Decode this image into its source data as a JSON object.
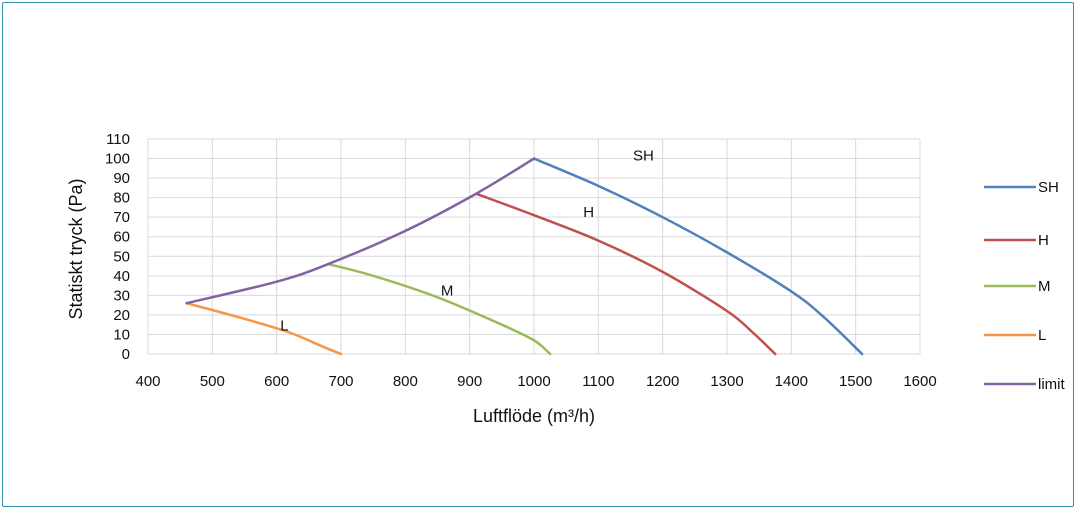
{
  "chart_data": {
    "type": "line",
    "title": "",
    "xlabel": "Luftflöde (m³/h)",
    "ylabel": "Statiskt tryck (Pa)",
    "xlim": [
      400,
      1600
    ],
    "ylim": [
      0,
      110
    ],
    "x_ticks": [
      400,
      500,
      600,
      700,
      800,
      900,
      1000,
      1100,
      1200,
      1300,
      1400,
      1500,
      1600
    ],
    "y_ticks": [
      0,
      10,
      20,
      30,
      40,
      50,
      60,
      70,
      80,
      90,
      100,
      110
    ],
    "grid": true,
    "legend_position": "right",
    "series": [
      {
        "name": "SH",
        "color": "#4f81bd",
        "points": [
          [
            1000,
            100
          ],
          [
            1100,
            86
          ],
          [
            1200,
            70
          ],
          [
            1300,
            52
          ],
          [
            1400,
            32
          ],
          [
            1450,
            19
          ],
          [
            1510,
            0
          ]
        ]
      },
      {
        "name": "H",
        "color": "#c0504d",
        "points": [
          [
            910,
            82
          ],
          [
            1000,
            71
          ],
          [
            1100,
            58
          ],
          [
            1200,
            42
          ],
          [
            1300,
            22
          ],
          [
            1340,
            11
          ],
          [
            1375,
            0
          ]
        ]
      },
      {
        "name": "M",
        "color": "#9bbb59",
        "points": [
          [
            680,
            46
          ],
          [
            750,
            40
          ],
          [
            850,
            29
          ],
          [
            950,
            15
          ],
          [
            1000,
            7
          ],
          [
            1025,
            0
          ]
        ]
      },
      {
        "name": "L",
        "color": "#f79646",
        "points": [
          [
            460,
            26
          ],
          [
            550,
            18
          ],
          [
            620,
            11
          ],
          [
            670,
            4
          ],
          [
            700,
            0
          ]
        ]
      },
      {
        "name": "limit",
        "color": "#8064a2",
        "points": [
          [
            460,
            26
          ],
          [
            600,
            37
          ],
          [
            680,
            46
          ],
          [
            800,
            63
          ],
          [
            910,
            82
          ],
          [
            1000,
            100
          ]
        ]
      }
    ],
    "annotations": [
      {
        "text": "SH",
        "x": 1170,
        "y": 99
      },
      {
        "text": "H",
        "x": 1085,
        "y": 70
      },
      {
        "text": "M",
        "x": 865,
        "y": 30
      },
      {
        "text": "L",
        "x": 612,
        "y": 12
      }
    ]
  }
}
